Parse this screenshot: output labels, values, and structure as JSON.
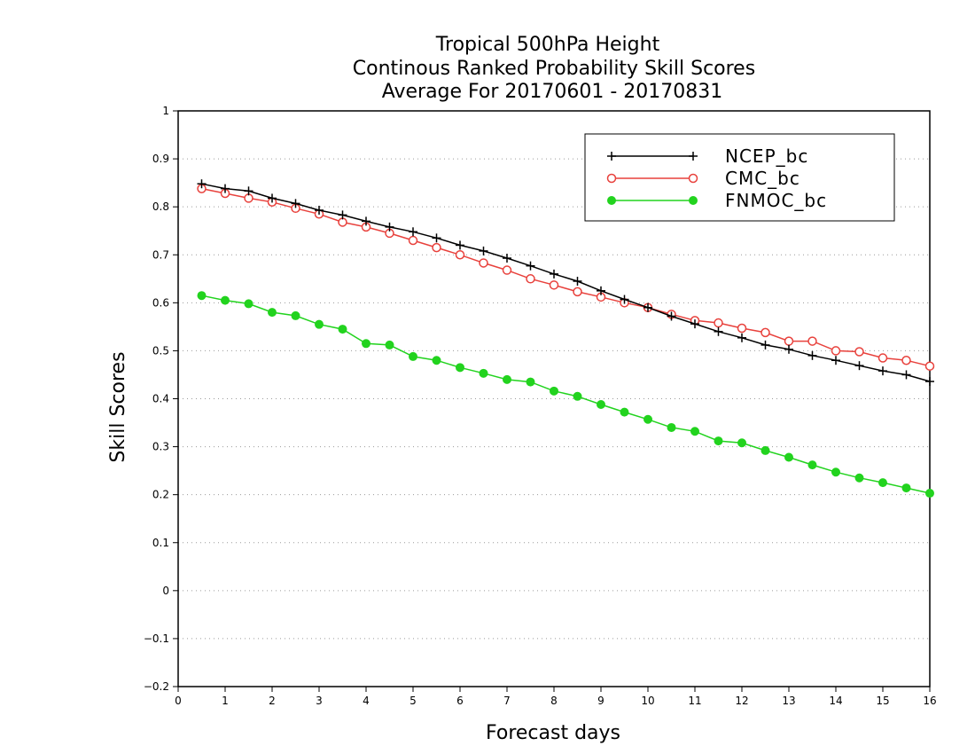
{
  "chart_data": {
    "type": "line",
    "title": [
      "Tropical 500hPa Height",
      "Continous Ranked Probability Skill Scores",
      "Average For 20170601 - 20170831"
    ],
    "xlabel": "Forecast days",
    "ylabel": "Skill Scores",
    "xlim": [
      0,
      16
    ],
    "ylim": [
      -0.2,
      1
    ],
    "xticks": [
      0,
      1,
      2,
      3,
      4,
      5,
      6,
      7,
      8,
      9,
      10,
      11,
      12,
      13,
      14,
      15,
      16
    ],
    "yticks": [
      -0.2,
      -0.1,
      0,
      0.1,
      0.2,
      0.3,
      0.4,
      0.5,
      0.6,
      0.7,
      0.8,
      0.9,
      1
    ],
    "grid": "horizontal dotted",
    "legend_position": "top-right",
    "x": [
      0.5,
      1,
      1.5,
      2,
      2.5,
      3,
      3.5,
      4,
      4.5,
      5,
      5.5,
      6,
      6.5,
      7,
      7.5,
      8,
      8.5,
      9,
      9.5,
      10,
      10.5,
      11,
      11.5,
      12,
      12.5,
      13,
      13.5,
      14,
      14.5,
      15,
      15.5,
      16
    ],
    "series": [
      {
        "name": "NCEP_bc",
        "color": "#000000",
        "marker": "plus",
        "values": [
          0.848,
          0.838,
          0.833,
          0.818,
          0.807,
          0.793,
          0.783,
          0.77,
          0.758,
          0.748,
          0.735,
          0.72,
          0.708,
          0.693,
          0.677,
          0.66,
          0.645,
          0.625,
          0.607,
          0.59,
          0.572,
          0.556,
          0.54,
          0.527,
          0.512,
          0.503,
          0.49,
          0.48,
          0.469,
          0.458,
          0.45,
          0.436
        ]
      },
      {
        "name": "CMC_bc",
        "color": "#e8413c",
        "marker": "open-circle",
        "values": [
          0.838,
          0.828,
          0.818,
          0.81,
          0.797,
          0.785,
          0.768,
          0.758,
          0.745,
          0.73,
          0.715,
          0.7,
          0.683,
          0.668,
          0.65,
          0.637,
          0.623,
          0.612,
          0.6,
          0.59,
          0.576,
          0.563,
          0.558,
          0.547,
          0.538,
          0.52,
          0.52,
          0.5,
          0.498,
          0.485,
          0.48,
          0.468
        ]
      },
      {
        "name": "FNMOC_bc",
        "color": "#22d31e",
        "marker": "filled-circle",
        "values": [
          0.615,
          0.605,
          0.598,
          0.58,
          0.573,
          0.555,
          0.545,
          0.515,
          0.512,
          0.488,
          0.48,
          0.465,
          0.453,
          0.44,
          0.435,
          0.416,
          0.405,
          0.388,
          0.372,
          0.357,
          0.34,
          0.332,
          0.312,
          0.308,
          0.292,
          0.278,
          0.262,
          0.247,
          0.235,
          0.225,
          0.214,
          0.203
        ]
      }
    ]
  }
}
